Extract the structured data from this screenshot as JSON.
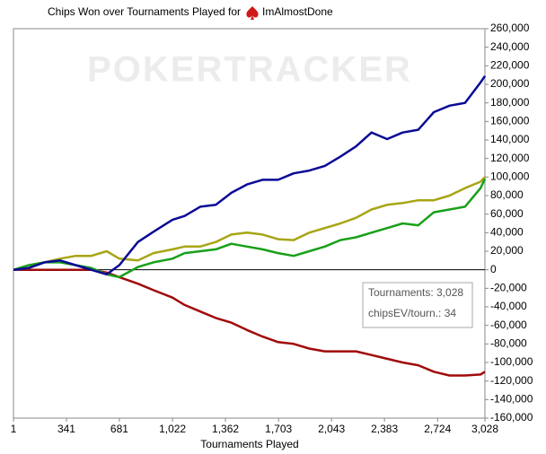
{
  "chart_data": {
    "type": "line",
    "title": "Chips Won over Tournaments Played for",
    "player": "ImAlmostDone",
    "watermark": "POKERTRACKER",
    "x_label": "Tournaments Played",
    "tooltip": [
      "Tournaments: 3,028",
      "chipsEV/tourn.: 34"
    ],
    "x": [
      1,
      100,
      200,
      300,
      400,
      500,
      600,
      681,
      800,
      900,
      1022,
      1100,
      1200,
      1300,
      1400,
      1500,
      1600,
      1700,
      1800,
      1900,
      2000,
      2100,
      2200,
      2300,
      2400,
      2500,
      2600,
      2700,
      2800,
      2900,
      3000,
      3028
    ],
    "series": [
      {
        "color": "#a00a0a",
        "values": [
          0,
          0,
          0,
          0,
          0,
          0,
          -3000,
          -8000,
          -15000,
          -22000,
          -30000,
          -38000,
          -45000,
          -52000,
          -57000,
          -65000,
          -72000,
          -78000,
          -80000,
          -85000,
          -88000,
          -88000,
          -88000,
          -92000,
          -96000,
          -100000,
          -103000,
          -110000,
          -114000,
          -114000,
          -113000,
          -110000
        ]
      },
      {
        "color": "#a8a514",
        "values": [
          0,
          2000,
          8000,
          12000,
          15000,
          15000,
          20000,
          12000,
          10000,
          18000,
          22000,
          25000,
          25000,
          30000,
          38000,
          40000,
          38000,
          33000,
          32000,
          40000,
          45000,
          50000,
          56000,
          65000,
          70000,
          72000,
          75000,
          75000,
          80000,
          88000,
          95000,
          100000
        ]
      },
      {
        "color": "#18a018",
        "values": [
          0,
          5000,
          8000,
          8000,
          5000,
          2000,
          -5000,
          -8000,
          3000,
          8000,
          12000,
          18000,
          20000,
          22000,
          28000,
          25000,
          22000,
          18000,
          15000,
          20000,
          25000,
          32000,
          35000,
          40000,
          45000,
          50000,
          48000,
          62000,
          65000,
          68000,
          88000,
          98000
        ]
      },
      {
        "color": "#0a0a96",
        "values": [
          0,
          2000,
          8000,
          10000,
          5000,
          0,
          -5000,
          5000,
          30000,
          41000,
          54000,
          58000,
          68000,
          70000,
          83000,
          92000,
          97000,
          97000,
          104000,
          107000,
          112000,
          122000,
          133000,
          148000,
          141000,
          148000,
          151000,
          170000,
          177000,
          180000,
          202000,
          209000
        ]
      }
    ],
    "xlim": [
      1,
      3028
    ],
    "xticks": [
      1,
      341,
      681,
      {
        "value": 1022,
        "label": "1,022"
      },
      {
        "value": 1362,
        "label": "1,362"
      },
      {
        "value": 1703,
        "label": "1,703"
      },
      {
        "value": 2043,
        "label": "2,043"
      },
      {
        "value": 2383,
        "label": "2,383"
      },
      {
        "value": 2724,
        "label": "2,724"
      },
      {
        "value": 3028,
        "label": "3,028"
      }
    ],
    "ylim": [
      -160000,
      260000
    ],
    "yticks": [
      {
        "value": -160000,
        "label": "-160,000"
      },
      {
        "value": -140000,
        "label": "-140,000"
      },
      {
        "value": -120000,
        "label": "-120,000"
      },
      {
        "value": -100000,
        "label": "-100,000"
      },
      {
        "value": -80000,
        "label": "-80,000"
      },
      {
        "value": -60000,
        "label": "-60,000"
      },
      {
        "value": -40000,
        "label": "-40,000"
      },
      {
        "value": -20000,
        "label": "-20,000"
      },
      0,
      {
        "value": 20000,
        "label": "20,000"
      },
      {
        "value": 40000,
        "label": "40,000"
      },
      {
        "value": 60000,
        "label": "60,000"
      },
      {
        "value": 80000,
        "label": "80,000"
      },
      {
        "value": 100000,
        "label": "100,000"
      },
      {
        "value": 120000,
        "label": "120,000"
      },
      {
        "value": 140000,
        "label": "140,000"
      },
      {
        "value": 160000,
        "label": "160,000"
      },
      {
        "value": 180000,
        "label": "180,000"
      },
      {
        "value": 200000,
        "label": "200,000"
      },
      {
        "value": 220000,
        "label": "220,000"
      },
      {
        "value": 240000,
        "label": "240,000"
      },
      {
        "value": 260000,
        "label": "260,000"
      }
    ]
  }
}
